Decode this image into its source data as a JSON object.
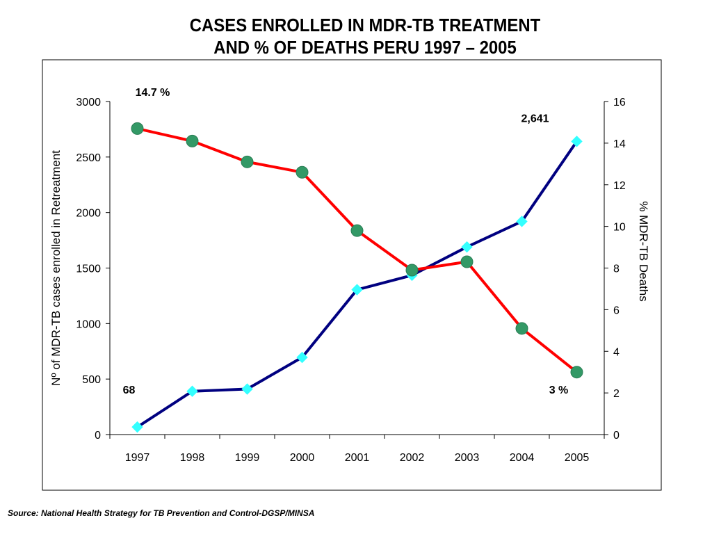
{
  "title_line1": "CASES ENROLLED IN MDR-TB TREATMENT",
  "title_line2": "AND % OF DEATHS PERU 1997 – 2005",
  "source": "Source: National Health Strategy for TB Prevention and Control-DGSP/MINSA",
  "chart_data": {
    "type": "line",
    "title": "CASES ENROLLED IN MDR-TB TREATMENT AND % OF DEATHS PERU 1997 – 2005",
    "categories": [
      "1997",
      "1998",
      "1999",
      "2000",
      "2001",
      "2002",
      "2003",
      "2004",
      "2005"
    ],
    "ylabel": "Nº of MDR-TB cases enrolled in Retreatment",
    "y2label": "% MDR-TB Deaths",
    "ylim": [
      0,
      3000
    ],
    "yticks": [
      0,
      500,
      1000,
      1500,
      2000,
      2500,
      3000
    ],
    "y2lim": [
      0,
      16
    ],
    "y2ticks": [
      0,
      2,
      4,
      6,
      8,
      10,
      12,
      14,
      16
    ],
    "grid": false,
    "series": [
      {
        "axis": "left",
        "color": "#000080",
        "marker_color": "#33ffff",
        "marker": "diamond",
        "values": [
          68,
          390,
          410,
          695,
          1305,
          1435,
          1690,
          1920,
          2641
        ]
      },
      {
        "axis": "right",
        "color": "#ff0000",
        "marker_color": "#339966",
        "marker": "circle",
        "values": [
          14.7,
          14.1,
          13.1,
          12.6,
          9.8,
          7.9,
          8.3,
          5.1,
          3.0
        ]
      }
    ],
    "annotations": [
      {
        "text": "14.7 %",
        "series": 1,
        "index": 0
      },
      {
        "text": "68",
        "series": 0,
        "index": 0
      },
      {
        "text": "2,641",
        "series": 0,
        "index": 8
      },
      {
        "text": "3 %",
        "series": 1,
        "index": 8
      }
    ]
  }
}
